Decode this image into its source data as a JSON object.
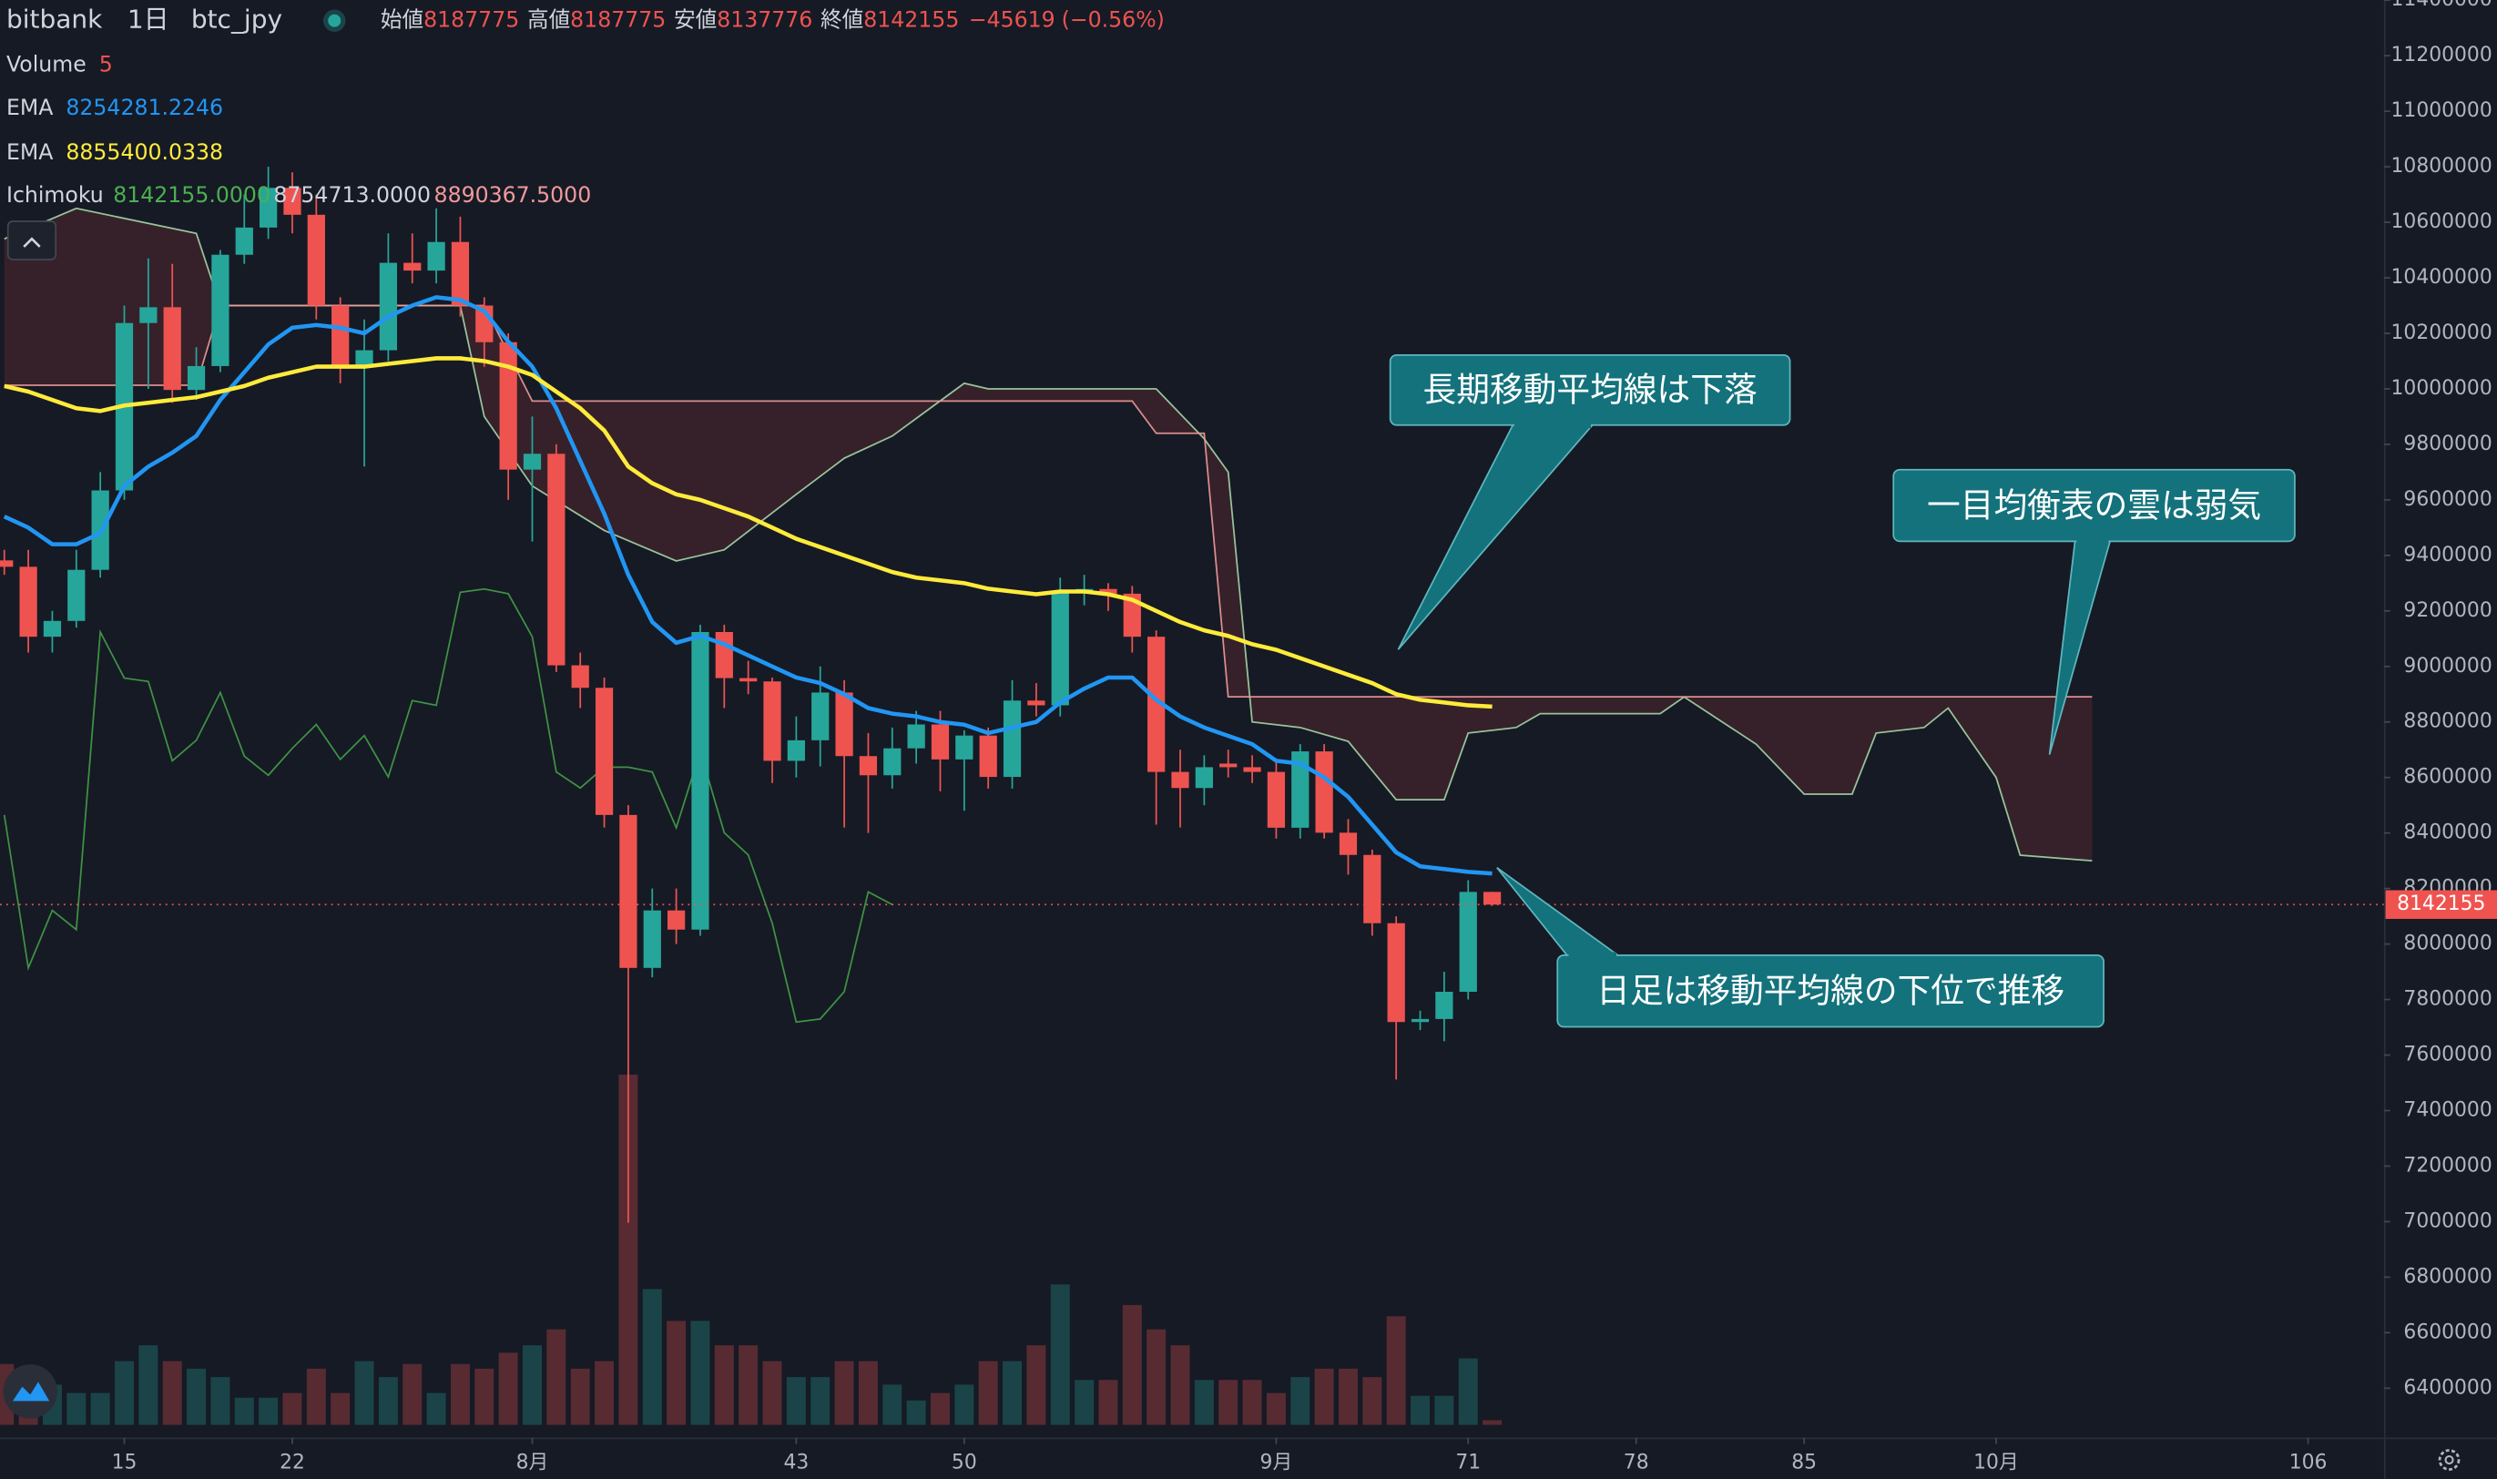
{
  "chart_data": {
    "type": "candlestick",
    "header": {
      "exchange": "bitbank",
      "interval": "1日",
      "symbol": "btc_jpy",
      "ohlc_labels": [
        "始値",
        "高値",
        "安値",
        "終値"
      ],
      "change": {
        "value": -45619,
        "label": "−45619"
      },
      "change_pct": {
        "value": -0.56,
        "label": "(−0.56%)"
      }
    },
    "xlim": [
      9.82,
      109.16
    ],
    "xticks": [
      15,
      22,
      {
        "value": 32,
        "label": "8月"
      },
      43,
      50,
      {
        "value": 63,
        "label": "9月"
      },
      71,
      78,
      85,
      {
        "value": 93,
        "label": "10月"
      },
      106
    ],
    "ylim": [
      6222000,
      11400700
    ],
    "yticks": [
      6400000,
      6600000,
      6800000,
      7000000,
      7200000,
      7400000,
      7600000,
      7800000,
      8000000,
      8200000,
      8400000,
      8600000,
      8800000,
      9000000,
      9200000,
      9400000,
      9600000,
      9800000,
      10000000,
      10200000,
      10400000,
      10600000,
      10800000,
      11000000,
      11200000,
      11400000
    ],
    "grid": false,
    "up_color": "#26a69a",
    "down_color": "#ef5350",
    "x": [
      10,
      11,
      12,
      13,
      14,
      15,
      16,
      17,
      18,
      19,
      20,
      21,
      22,
      23,
      24,
      25,
      26,
      27,
      28,
      29,
      30,
      31,
      32,
      33,
      34,
      35,
      36,
      37,
      38,
      39,
      40,
      41,
      42,
      43,
      44,
      45,
      46,
      47,
      48,
      49,
      50,
      51,
      52,
      53,
      54,
      55,
      56,
      57,
      58,
      59,
      60,
      61,
      62,
      63,
      64,
      65,
      66,
      67,
      68,
      69,
      70,
      71,
      72
    ],
    "open": [
      9382000,
      9359000,
      9107000,
      9164000,
      9348000,
      9634000,
      10237000,
      10294000,
      9996000,
      10082000,
      10483000,
      10581000,
      10724000,
      10627000,
      10300000,
      10082000,
      10139000,
      10454000,
      10426000,
      10529000,
      10300000,
      10168000,
      9709000,
      9766000,
      9004000,
      8923000,
      8465000,
      7914000,
      8121000,
      8052000,
      9124000,
      8958000,
      8946000,
      8660000,
      8734000,
      8906000,
      8677000,
      8608000,
      8705000,
      8791000,
      8665000,
      8751000,
      8602000,
      8877000,
      8860000,
      9267000,
      9279000,
      9262000,
      9107000,
      8620000,
      8562000,
      8650000,
      8637000,
      8620000,
      8419000,
      8694000,
      8401000,
      8321000,
      8075000,
      7719000,
      7730000,
      7828000,
      8187775
    ],
    "high": [
      9420000,
      9420000,
      9200000,
      9420000,
      9700000,
      10300000,
      10470000,
      10450000,
      10150000,
      10500000,
      10700000,
      10800000,
      10780000,
      10700000,
      10330000,
      10250000,
      10560000,
      10560000,
      10650000,
      10620000,
      10330000,
      10200000,
      9900000,
      9800000,
      9050000,
      8960000,
      8500000,
      8200000,
      8200000,
      9150000,
      9150000,
      9020000,
      8960000,
      8820000,
      9000000,
      8950000,
      8760000,
      8780000,
      8840000,
      8840000,
      8770000,
      8780000,
      8950000,
      8940000,
      9320000,
      9330000,
      9300000,
      9290000,
      9130000,
      8700000,
      8680000,
      8700000,
      8680000,
      8660000,
      8720000,
      8720000,
      8450000,
      8340000,
      8100000,
      7760000,
      7900000,
      8230000,
      8187775
    ],
    "low": [
      9330000,
      9050000,
      9050000,
      9140000,
      9320000,
      9600000,
      10000000,
      9950000,
      9960000,
      10060000,
      10450000,
      10540000,
      10560000,
      10250000,
      10020000,
      9720000,
      10100000,
      10380000,
      10380000,
      10260000,
      10080000,
      9600000,
      9450000,
      8980000,
      8850000,
      8420000,
      6996000,
      7880000,
      8000000,
      8030000,
      8850000,
      8900000,
      8580000,
      8600000,
      8640000,
      8420000,
      8400000,
      8560000,
      8650000,
      8550000,
      8480000,
      8560000,
      8560000,
      8820000,
      8820000,
      9220000,
      9200000,
      9050000,
      8430000,
      8420000,
      8500000,
      8600000,
      8580000,
      8380000,
      8380000,
      8380000,
      8250000,
      8030000,
      7512000,
      7690000,
      7650000,
      7800000,
      8137776
    ],
    "close": [
      9359000,
      9107000,
      9164000,
      9348000,
      9634000,
      10237000,
      10294000,
      9996000,
      10082000,
      10483000,
      10581000,
      10724000,
      10627000,
      10300000,
      10082000,
      10139000,
      10454000,
      10426000,
      10529000,
      10300000,
      10168000,
      9709000,
      9766000,
      9004000,
      8923000,
      8465000,
      7914000,
      8121000,
      8052000,
      9124000,
      8958000,
      8946000,
      8660000,
      8734000,
      8906000,
      8677000,
      8608000,
      8705000,
      8791000,
      8665000,
      8751000,
      8602000,
      8877000,
      8860000,
      9267000,
      9279000,
      9262000,
      9107000,
      8620000,
      8562000,
      8637000,
      8637000,
      8620000,
      8419000,
      8694000,
      8401000,
      8321000,
      8075000,
      7719000,
      7730000,
      7828000,
      8187775,
      8142155
    ],
    "volume": {
      "name": "Volume",
      "values": [
        65,
        51,
        43,
        34,
        34,
        68,
        85,
        68,
        60,
        51,
        29,
        29,
        34,
        60,
        34,
        68,
        51,
        65,
        34,
        65,
        60,
        77,
        85,
        102,
        60,
        68,
        374,
        145,
        111,
        111,
        85,
        85,
        68,
        51,
        51,
        68,
        68,
        43,
        26,
        34,
        43,
        68,
        68,
        85,
        150,
        48,
        48,
        128,
        102,
        85,
        48,
        48,
        48,
        34,
        51,
        60,
        60,
        51,
        116,
        31,
        31,
        71,
        5
      ]
    },
    "ema": [
      {
        "name": "EMA",
        "color": "#2196f3",
        "values": [
          9540000,
          9500000,
          9440000,
          9440000,
          9480000,
          9650000,
          9720000,
          9770000,
          9830000,
          9960000,
          10060000,
          10160000,
          10220000,
          10230000,
          10220000,
          10200000,
          10260000,
          10300000,
          10330000,
          10320000,
          10280000,
          10170000,
          10080000,
          9930000,
          9740000,
          9550000,
          9330000,
          9160000,
          9085000,
          9110000,
          9080000,
          9040000,
          9000000,
          8960000,
          8940000,
          8900000,
          8850000,
          8830000,
          8820000,
          8800000,
          8790000,
          8760000,
          8780000,
          8800000,
          8870000,
          8920000,
          8960000,
          8960000,
          8880000,
          8820000,
          8780000,
          8750000,
          8720000,
          8660000,
          8650000,
          8600000,
          8530000,
          8430000,
          8330000,
          8280000,
          8270000,
          8260000,
          8254281.2246
        ]
      },
      {
        "name": "EMA",
        "color": "#ffeb3b",
        "values": [
          10010000,
          9990000,
          9960000,
          9930000,
          9920000,
          9940000,
          9950000,
          9960000,
          9970000,
          9990000,
          10010000,
          10040000,
          10060000,
          10080000,
          10080000,
          10080000,
          10090000,
          10100000,
          10110000,
          10110000,
          10100000,
          10080000,
          10050000,
          9990000,
          9930000,
          9850000,
          9720000,
          9660000,
          9620000,
          9600000,
          9570000,
          9540000,
          9500000,
          9460000,
          9430000,
          9400000,
          9370000,
          9340000,
          9320000,
          9310000,
          9300000,
          9280000,
          9270000,
          9260000,
          9270000,
          9270000,
          9260000,
          9240000,
          9200000,
          9160000,
          9130000,
          9110000,
          9080000,
          9060000,
          9030000,
          9000000,
          8970000,
          8940000,
          8900000,
          8880000,
          8870000,
          8860000,
          8855400.0338
        ]
      }
    ],
    "ichimoku": {
      "name": "Ichimoku",
      "legend": [
        {
          "value": 8142155,
          "label": "8142155.0000",
          "color": "#4caf50"
        },
        {
          "value": 8754713,
          "label": "8754713.0000",
          "color": "#d1d4dc"
        },
        {
          "value": 8890367.5,
          "label": "8890367.5000",
          "color": "#ef9a9a"
        }
      ],
      "lagging_span": {
        "color": "#43a047",
        "x": [
          10,
          11,
          12,
          13,
          14,
          15,
          16,
          17,
          18,
          19,
          20,
          21,
          22,
          23,
          24,
          25,
          26,
          27,
          28,
          29,
          30,
          31,
          32,
          33,
          34,
          35,
          36,
          37,
          38,
          39,
          40,
          41,
          42,
          43,
          44,
          45,
          46,
          47
        ],
        "values": [
          8465000,
          7914000,
          8121000,
          8052000,
          9124000,
          8958000,
          8946000,
          8660000,
          8734000,
          8906000,
          8677000,
          8608000,
          8705000,
          8791000,
          8665000,
          8751000,
          8602000,
          8877000,
          8860000,
          9267000,
          9279000,
          9262000,
          9107000,
          8620000,
          8562000,
          8637000,
          8637000,
          8620000,
          8419000,
          8694000,
          8401000,
          8321000,
          8075000,
          7719000,
          7730000,
          7828000,
          8187775,
          8142155
        ]
      },
      "leading_span_a": {
        "color": "#a5d6a7",
        "x": [
          10,
          13,
          18,
          19,
          29,
          30,
          32,
          35,
          38,
          40,
          43,
          45,
          47,
          50,
          51,
          58,
          60,
          61,
          62,
          64,
          66,
          68,
          70,
          71,
          73,
          74,
          79,
          80,
          83,
          85,
          87,
          88,
          90,
          91,
          93,
          94,
          97
        ],
        "values": [
          10540000,
          10650000,
          10560000,
          10300000,
          10300000,
          9900000,
          9650000,
          9490000,
          9380000,
          9420000,
          9620000,
          9750000,
          9830000,
          10020000,
          10000000,
          10000000,
          9820000,
          9700000,
          8800000,
          8780000,
          8730000,
          8520000,
          8520000,
          8760000,
          8780000,
          8830000,
          8830000,
          8890000,
          8720000,
          8540000,
          8540000,
          8760000,
          8780000,
          8850000,
          8600000,
          8320000,
          8300000
        ]
      },
      "leading_span_b": {
        "color": "#ef9a9a",
        "x": [
          10,
          18,
          19,
          30,
          32,
          57,
          58,
          60,
          61,
          97
        ],
        "values": [
          10013000,
          10013000,
          10300000,
          10300000,
          9956000,
          9956000,
          9840000,
          9840000,
          8890367.5,
          8890367.5
        ]
      },
      "cloud_color": "#5d2a30"
    },
    "annotations": [
      {
        "text": "長期移動平均線は下落"
      },
      {
        "text": "一目均衡表の雲は弱気"
      },
      {
        "text": "日足は移動平均線の下位で推移"
      }
    ]
  }
}
